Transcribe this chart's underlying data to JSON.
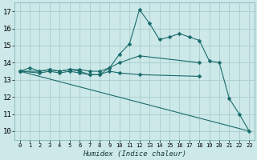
{
  "xlabel": "Humidex (Indice chaleur)",
  "background_color": "#cce8e8",
  "grid_color": "#aacccc",
  "line_color": "#1a6b6b",
  "xlim": [
    -0.5,
    23.5
  ],
  "ylim": [
    9.5,
    17.5
  ],
  "xticks": [
    0,
    1,
    2,
    3,
    4,
    5,
    6,
    7,
    8,
    9,
    10,
    11,
    12,
    13,
    14,
    15,
    16,
    17,
    18,
    19,
    20,
    21,
    22,
    23
  ],
  "yticks": [
    10,
    11,
    12,
    13,
    14,
    15,
    16,
    17
  ],
  "series": [
    {
      "x": [
        0,
        1,
        2,
        3,
        4,
        5,
        6,
        7,
        8,
        9,
        10,
        11,
        12,
        13,
        14,
        15,
        16,
        17,
        18,
        19,
        20,
        21,
        22,
        23
      ],
      "y": [
        13.5,
        13.7,
        13.5,
        13.6,
        13.5,
        13.6,
        13.5,
        13.3,
        13.3,
        13.7,
        14.5,
        15.1,
        17.1,
        16.3,
        15.35,
        15.5,
        15.7,
        15.5,
        15.3,
        14.1,
        14.0,
        11.9,
        11.0,
        10.0
      ],
      "marker": "D",
      "markersize": 2.5,
      "lw": 0.8
    },
    {
      "x": [
        0,
        2,
        3,
        4,
        5,
        6,
        7,
        8,
        9,
        10,
        12,
        18
      ],
      "y": [
        13.5,
        13.5,
        13.6,
        13.5,
        13.6,
        13.6,
        13.5,
        13.5,
        13.7,
        14.0,
        14.4,
        14.0
      ],
      "marker": "D",
      "markersize": 2.5,
      "lw": 0.8
    },
    {
      "x": [
        0,
        2,
        3,
        4,
        5,
        6,
        7,
        8,
        9,
        10,
        12,
        18
      ],
      "y": [
        13.5,
        13.4,
        13.5,
        13.4,
        13.5,
        13.4,
        13.3,
        13.3,
        13.5,
        13.4,
        13.3,
        13.2
      ],
      "marker": "D",
      "markersize": 2.5,
      "lw": 0.8
    },
    {
      "x": [
        0,
        23
      ],
      "y": [
        13.5,
        10.0
      ],
      "marker": null,
      "markersize": 0,
      "lw": 0.8
    }
  ]
}
